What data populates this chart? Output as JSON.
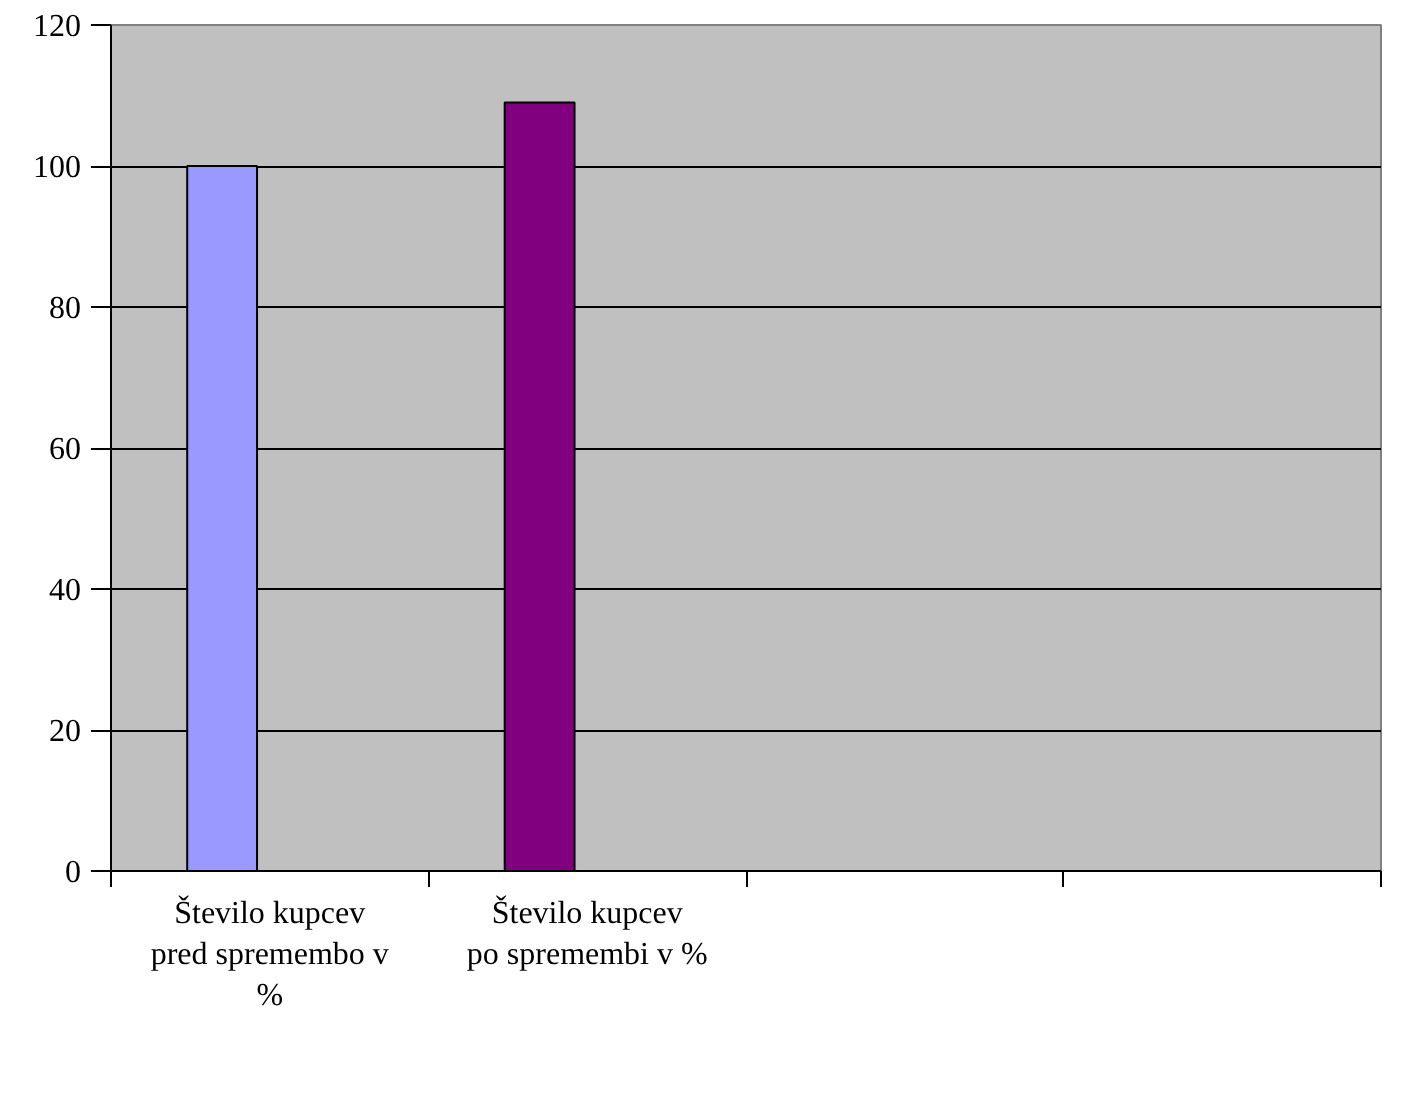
{
  "chart_data": {
    "type": "bar",
    "categories": [
      "Število kupcev pred spremembo v %",
      "Število kupcev po spremembi v %",
      null,
      null
    ],
    "values": [
      100,
      109,
      null,
      null
    ],
    "colors": [
      "#9999ff",
      "#800080",
      "#9999ff",
      "#800080"
    ],
    "ylim": [
      0,
      120
    ],
    "yticks": [
      0,
      20,
      40,
      60,
      80,
      100,
      120
    ],
    "grid": "y"
  }
}
